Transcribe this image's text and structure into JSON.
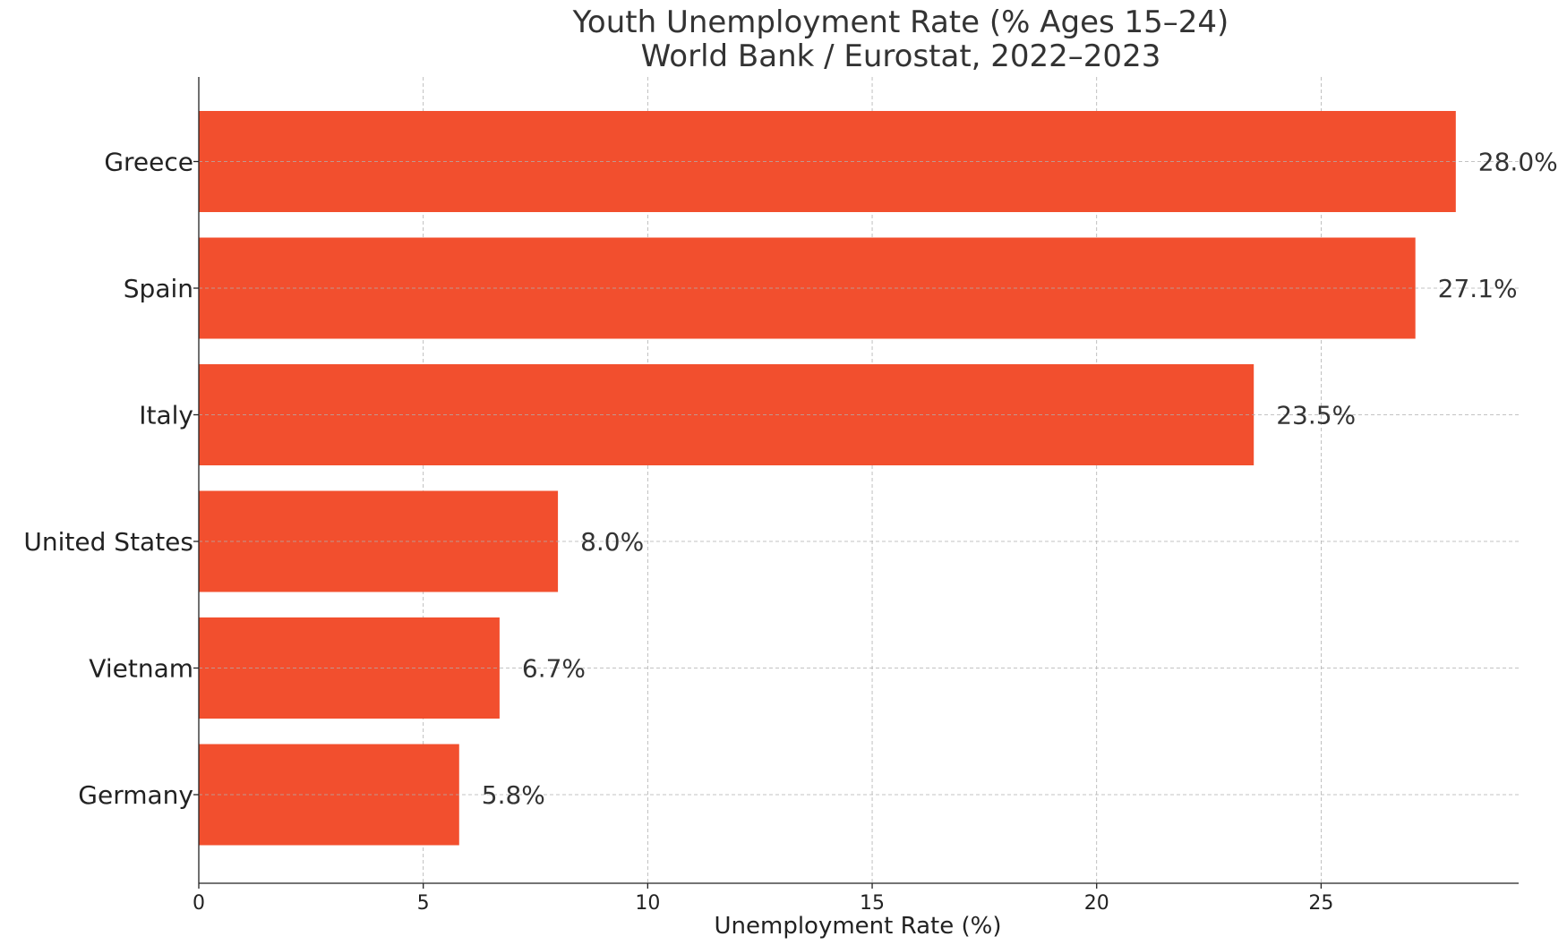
{
  "chart_data": {
    "type": "bar",
    "orientation": "horizontal",
    "title": "Youth Unemployment Rate (% Ages 15–24)",
    "subtitle": "World Bank / Eurostat, 2022–2023",
    "xlabel": "Unemployment Rate (%)",
    "ylabel": "",
    "categories": [
      "Greece",
      "Spain",
      "Italy",
      "United States",
      "Vietnam",
      "Germany"
    ],
    "values": [
      28.0,
      27.1,
      23.5,
      8.0,
      6.7,
      5.8
    ],
    "value_labels": [
      "28.0%",
      "27.1%",
      "23.5%",
      "8.0%",
      "6.7%",
      "5.8%"
    ],
    "xlim": [
      0,
      29.4
    ],
    "xticks": [
      0,
      5,
      10,
      15,
      20,
      25
    ],
    "grid": true,
    "bar_color": "#f24f2e",
    "legend": "none"
  }
}
